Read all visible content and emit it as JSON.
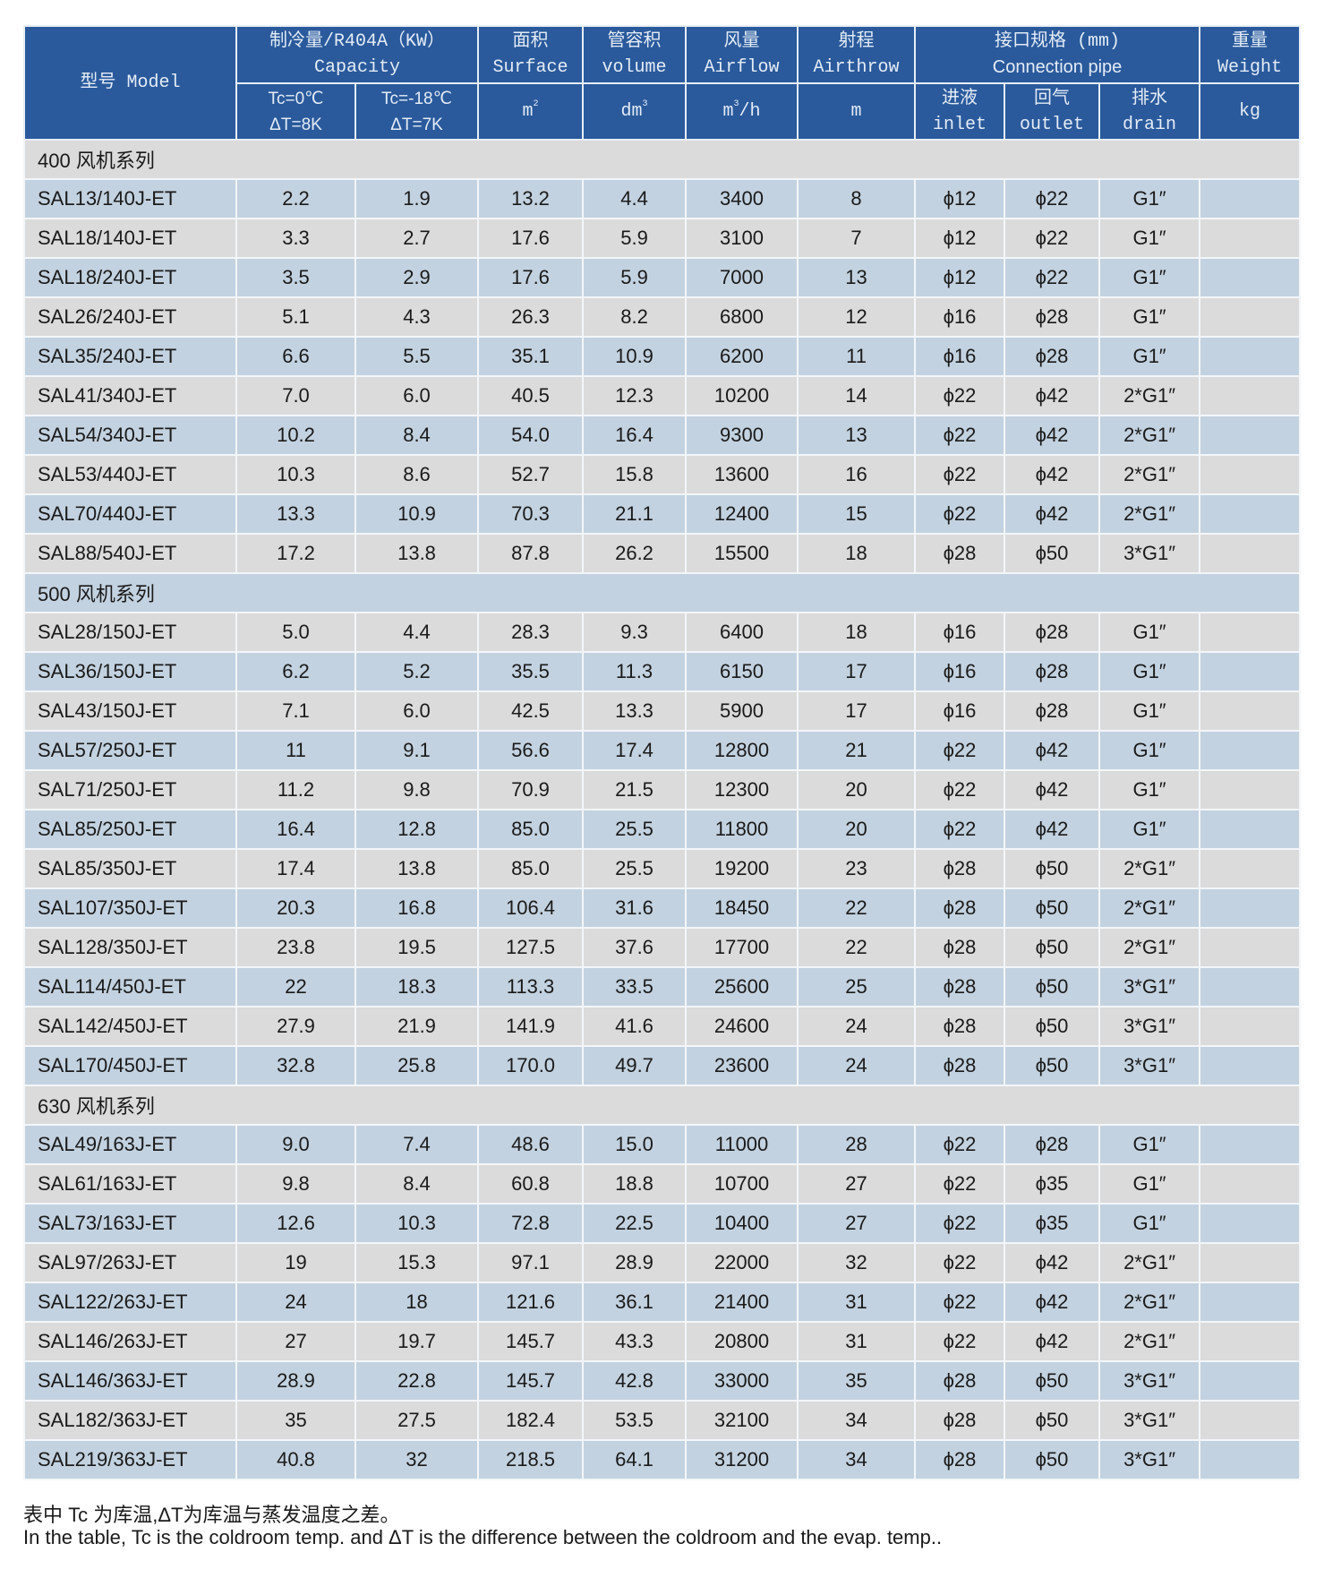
{
  "header": {
    "model": "型号 Model",
    "capacity_cn": "制冷量/R404A（KW）",
    "capacity_en": "Capacity",
    "tc0_line1": "Tc=0℃",
    "tc0_line2": "ΔT=8K",
    "tc18_line1": "Tc=-18℃",
    "tc18_line2": "ΔT=7K",
    "surface_cn": "面积",
    "surface_en": "Surface",
    "surface_unit": "m",
    "surface_unit_sup": "2",
    "volume_cn": "管容积",
    "volume_en": "volume",
    "volume_unit": "dm",
    "volume_unit_sup": "3",
    "airflow_cn": "风量",
    "airflow_en": "Airflow",
    "airflow_unit": "m",
    "airflow_unit_sup": "3",
    "airflow_unit_tail": "/h",
    "airthrow_cn": "射程",
    "airthrow_en": "Airthrow",
    "airthrow_unit": "m",
    "connection_cn": "接口规格 (mm)",
    "connection_en": "Connection pipe",
    "inlet_cn": "进液",
    "inlet_en": "inlet",
    "outlet_cn": "回气",
    "outlet_en": "outlet",
    "drain_cn": "排水",
    "drain_en": "drain",
    "weight_cn": "重量",
    "weight_en": "Weight",
    "weight_unit": "kg"
  },
  "colors": {
    "header_bg": "#2a5a9c",
    "row_blue": "#c3d2e0",
    "row_gray": "#dbdbdb"
  },
  "sections": [
    {
      "title": "400 风机系列",
      "rows": [
        [
          "SAL13/140J-ET",
          "2.2",
          "1.9",
          "13.2",
          "4.4",
          "3400",
          "8",
          "ϕ12",
          "ϕ22",
          "G1″",
          ""
        ],
        [
          "SAL18/140J-ET",
          "3.3",
          "2.7",
          "17.6",
          "5.9",
          "3100",
          "7",
          "ϕ12",
          "ϕ22",
          "G1″",
          ""
        ],
        [
          "SAL18/240J-ET",
          "3.5",
          "2.9",
          "17.6",
          "5.9",
          "7000",
          "13",
          "ϕ12",
          "ϕ22",
          "G1″",
          ""
        ],
        [
          "SAL26/240J-ET",
          "5.1",
          "4.3",
          "26.3",
          "8.2",
          "6800",
          "12",
          "ϕ16",
          "ϕ28",
          "G1″",
          ""
        ],
        [
          "SAL35/240J-ET",
          "6.6",
          "5.5",
          "35.1",
          "10.9",
          "6200",
          "11",
          "ϕ16",
          "ϕ28",
          "G1″",
          ""
        ],
        [
          "SAL41/340J-ET",
          "7.0",
          "6.0",
          "40.5",
          "12.3",
          "10200",
          "14",
          "ϕ22",
          "ϕ42",
          "2*G1″",
          ""
        ],
        [
          "SAL54/340J-ET",
          "10.2",
          "8.4",
          "54.0",
          "16.4",
          "9300",
          "13",
          "ϕ22",
          "ϕ42",
          "2*G1″",
          ""
        ],
        [
          "SAL53/440J-ET",
          "10.3",
          "8.6",
          "52.7",
          "15.8",
          "13600",
          "16",
          "ϕ22",
          "ϕ42",
          "2*G1″",
          ""
        ],
        [
          "SAL70/440J-ET",
          "13.3",
          "10.9",
          "70.3",
          "21.1",
          "12400",
          "15",
          "ϕ22",
          "ϕ42",
          "2*G1″",
          ""
        ],
        [
          "SAL88/540J-ET",
          "17.2",
          "13.8",
          "87.8",
          "26.2",
          "15500",
          "18",
          "ϕ28",
          "ϕ50",
          "3*G1″",
          ""
        ]
      ]
    },
    {
      "title": "500 风机系列",
      "rows": [
        [
          "SAL28/150J-ET",
          "5.0",
          "4.4",
          "28.3",
          "9.3",
          "6400",
          "18",
          "ϕ16",
          "ϕ28",
          "G1″",
          ""
        ],
        [
          "SAL36/150J-ET",
          "6.2",
          "5.2",
          "35.5",
          "11.3",
          "6150",
          "17",
          "ϕ16",
          "ϕ28",
          "G1″",
          ""
        ],
        [
          "SAL43/150J-ET",
          "7.1",
          "6.0",
          "42.5",
          "13.3",
          "5900",
          "17",
          "ϕ16",
          "ϕ28",
          "G1″",
          ""
        ],
        [
          "SAL57/250J-ET",
          "11",
          "9.1",
          "56.6",
          "17.4",
          "12800",
          "21",
          "ϕ22",
          "ϕ42",
          "G1″",
          ""
        ],
        [
          "SAL71/250J-ET",
          "11.2",
          "9.8",
          "70.9",
          "21.5",
          "12300",
          "20",
          "ϕ22",
          "ϕ42",
          "G1″",
          ""
        ],
        [
          "SAL85/250J-ET",
          "16.4",
          "12.8",
          "85.0",
          "25.5",
          "11800",
          "20",
          "ϕ22",
          "ϕ42",
          "G1″",
          ""
        ],
        [
          "SAL85/350J-ET",
          "17.4",
          "13.8",
          "85.0",
          "25.5",
          "19200",
          "23",
          "ϕ28",
          "ϕ50",
          "2*G1″",
          ""
        ],
        [
          "SAL107/350J-ET",
          "20.3",
          "16.8",
          "106.4",
          "31.6",
          "18450",
          "22",
          "ϕ28",
          "ϕ50",
          "2*G1″",
          ""
        ],
        [
          "SAL128/350J-ET",
          "23.8",
          "19.5",
          "127.5",
          "37.6",
          "17700",
          "22",
          "ϕ28",
          "ϕ50",
          "2*G1″",
          ""
        ],
        [
          "SAL114/450J-ET",
          "22",
          "18.3",
          "113.3",
          "33.5",
          "25600",
          "25",
          "ϕ28",
          "ϕ50",
          "3*G1″",
          ""
        ],
        [
          "SAL142/450J-ET",
          "27.9",
          "21.9",
          "141.9",
          "41.6",
          "24600",
          "24",
          "ϕ28",
          "ϕ50",
          "3*G1″",
          ""
        ],
        [
          "SAL170/450J-ET",
          "32.8",
          "25.8",
          "170.0",
          "49.7",
          "23600",
          "24",
          "ϕ28",
          "ϕ50",
          "3*G1″",
          ""
        ]
      ]
    },
    {
      "title": "630 风机系列",
      "rows": [
        [
          "SAL49/163J-ET",
          "9.0",
          "7.4",
          "48.6",
          "15.0",
          "11000",
          "28",
          "ϕ22",
          "ϕ28",
          "G1″",
          ""
        ],
        [
          "SAL61/163J-ET",
          "9.8",
          "8.4",
          "60.8",
          "18.8",
          "10700",
          "27",
          "ϕ22",
          "ϕ35",
          "G1″",
          ""
        ],
        [
          "SAL73/163J-ET",
          "12.6",
          "10.3",
          "72.8",
          "22.5",
          "10400",
          "27",
          "ϕ22",
          "ϕ35",
          "G1″",
          ""
        ],
        [
          "SAL97/263J-ET",
          "19",
          "15.3",
          "97.1",
          "28.9",
          "22000",
          "32",
          "ϕ22",
          "ϕ42",
          "2*G1″",
          ""
        ],
        [
          "SAL122/263J-ET",
          "24",
          "18",
          "121.6",
          "36.1",
          "21400",
          "31",
          "ϕ22",
          "ϕ42",
          "2*G1″",
          ""
        ],
        [
          "SAL146/263J-ET",
          "27",
          "19.7",
          "145.7",
          "43.3",
          "20800",
          "31",
          "ϕ22",
          "ϕ42",
          "2*G1″",
          ""
        ],
        [
          "SAL146/363J-ET",
          "28.9",
          "22.8",
          "145.7",
          "42.8",
          "33000",
          "35",
          "ϕ28",
          "ϕ50",
          "3*G1″",
          ""
        ],
        [
          "SAL182/363J-ET",
          "35",
          "27.5",
          "182.4",
          "53.5",
          "32100",
          "34",
          "ϕ28",
          "ϕ50",
          "3*G1″",
          ""
        ],
        [
          "SAL219/363J-ET",
          "40.8",
          "32",
          "218.5",
          "64.1",
          "31200",
          "34",
          "ϕ28",
          "ϕ50",
          "3*G1″",
          ""
        ]
      ]
    }
  ],
  "notes": {
    "cn": "表中 Tc 为库温,ΔT为库温与蒸发温度之差。",
    "en": "In the table, Tc is the coldroom temp. and ΔT is the difference between the coldroom and the evap. temp.."
  }
}
